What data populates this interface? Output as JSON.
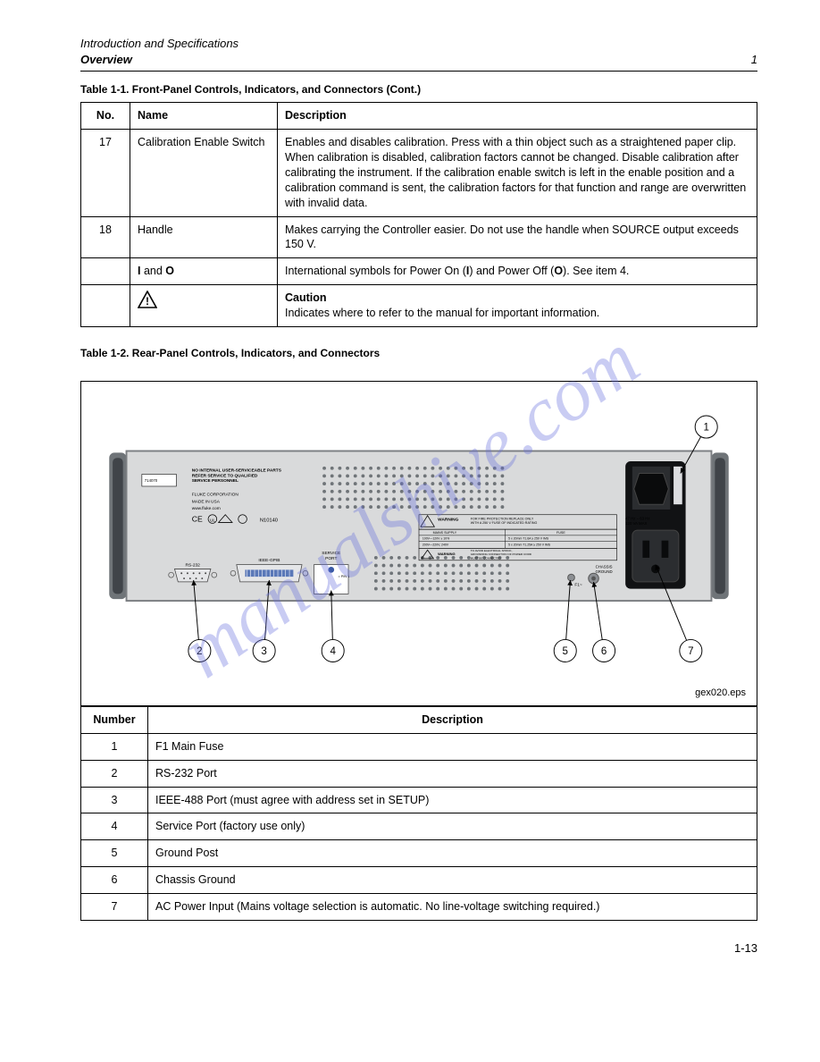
{
  "watermark": "manualshive.com",
  "header": {
    "left_line1": "Introduction and Specifications",
    "left_line2": "Overview",
    "right_line": "1"
  },
  "frontpanel": {
    "caption_prefix": "Table 1-1. ",
    "caption": "Front-Panel Controls, Indicators, and Connectors (Cont.)",
    "cols": [
      "No.",
      "Name",
      "Description"
    ],
    "rows": [
      {
        "no": "17",
        "name": "Calibration Enable Switch",
        "desc": "Enables and disables calibration. Press with a thin object such as a straightened paper clip. When calibration is disabled, calibration factors cannot be changed. Disable calibration after calibrating the instrument. If the calibration enable switch is left in the enable position and a calibration command is sent, the calibration factors for that function and range are overwritten with invalid data."
      },
      {
        "no": "18",
        "name": "Handle",
        "desc": "Makes carrying the Controller easier. Do not use the handle when SOURCE output exceeds 150 V."
      },
      {
        "no": "",
        "name_html": "<b>I</b> and <b>O</b>",
        "desc": "International symbols for Power On (<b>I</b>) and Power Off (<b>O</b>). See item 4."
      },
      {
        "no": "",
        "name_html": "<span class=\"tri\"></span>",
        "desc": "<b>Caution</b><br>Indicates where to refer to the manual for important information."
      }
    ]
  },
  "rearpanel": {
    "caption_prefix": "Table 1-2. ",
    "caption": "Rear-Panel Controls, Indicators, and Connectors",
    "gex_caption": "gex020.eps",
    "cols": [
      "Number",
      "Description"
    ],
    "rows": [
      {
        "no": "1",
        "desc": "F1 Main Fuse"
      },
      {
        "no": "2",
        "desc": "RS-232 Port"
      },
      {
        "no": "3",
        "desc": "IEEE-488 Port (must agree with address set in SETUP)"
      },
      {
        "no": "4",
        "desc": "Service Port (factory use only)"
      },
      {
        "no": "5",
        "desc": "Ground Post"
      },
      {
        "no": "6",
        "desc": "Chassis Ground"
      },
      {
        "no": "7",
        "desc": "AC Power Input (Mains voltage selection is automatic. No line-voltage switching required.)"
      }
    ],
    "callouts": {
      "top_right": "1",
      "bottom": [
        "2",
        "3",
        "4",
        "5",
        "6",
        "7"
      ]
    },
    "panel_labels": {
      "serial_box": "714070",
      "no_user_text": "NO INTERNAL USER-SERVICEABLE PARTS\nREFER SERVICE TO QUALIFIED\nSERVICE PERSONNEL",
      "fluke": "FLUKE CORPORATION",
      "made": "MADE IN USA",
      "www": "www.fluke.com",
      "rs232": "RS-232",
      "ieee": "IEEE-GPIB",
      "service_port": "SERVICE\nPORT",
      "pin1": "= PIN 1",
      "warning1": "WARNING",
      "warning1_text": "FOR FIRE PROTECTION REPLACE ONLY\nWITH A 250 V FUSE OF INDICATED RATING",
      "mains_hdr": "MAINS SUPPLY",
      "fuse_hdr": "FUSE",
      "mains_row1_l": "100V—120V ± 10%",
      "mains_row1_r": "5 x 20mm T1.6A ≥ 250 V IMS",
      "mains_row2_l": "200V—220V, 240V",
      "mains_row2_r": "5 x 20mm T1.25A ≥ 250 V IMS",
      "warning2": "WARNING",
      "warning2_text": "TO AVOID ELECTRICAL SHOCK,\nGROUNDING CONNECTION OF POWER CORD\nMUST BE CONNECTED",
      "fuse_label": "F1~",
      "chassis": "CHASSIS\nGROUND",
      "power_rating": "47 Hz – 63 Hz\n120 VA MAX"
    },
    "colors": {
      "panel_bg": "#d9dadb",
      "handle_outer": "#6f7478",
      "handle_inner": "#404449",
      "iec_bg": "#111214",
      "callout_line": "#000"
    }
  },
  "footer": {
    "page": "1-13"
  }
}
